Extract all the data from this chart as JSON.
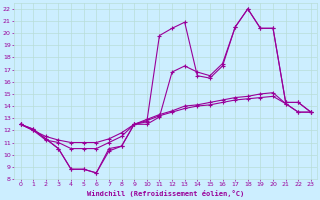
{
  "xlabel": "Windchill (Refroidissement éolien,°C)",
  "bg_color": "#cceeff",
  "grid_color": "#b8ddd8",
  "line_color": "#990099",
  "xlim": [
    -0.5,
    23.5
  ],
  "ylim": [
    8,
    22.5
  ],
  "yticks": [
    8,
    9,
    10,
    11,
    12,
    13,
    14,
    15,
    16,
    17,
    18,
    19,
    20,
    21,
    22
  ],
  "xticks": [
    0,
    1,
    2,
    3,
    4,
    5,
    6,
    7,
    8,
    9,
    10,
    11,
    12,
    13,
    14,
    15,
    16,
    17,
    18,
    19,
    20,
    21,
    22,
    23
  ],
  "line1_x": [
    0,
    1,
    2,
    3,
    4,
    5,
    6,
    7,
    8,
    9,
    10,
    11,
    12,
    13,
    14,
    15,
    16,
    17,
    18,
    19,
    20,
    21,
    22,
    23
  ],
  "line1_y": [
    12.5,
    12.0,
    11.2,
    11.0,
    10.5,
    10.5,
    10.5,
    11.0,
    11.5,
    12.5,
    12.8,
    13.2,
    13.5,
    13.8,
    14.0,
    14.1,
    14.3,
    14.5,
    14.6,
    14.7,
    14.8,
    14.2,
    13.5,
    13.5
  ],
  "line2_x": [
    0,
    1,
    2,
    3,
    4,
    5,
    6,
    7,
    8,
    9,
    10,
    11,
    12,
    13,
    14,
    15,
    16,
    17,
    18,
    19,
    20,
    21,
    22,
    23
  ],
  "line2_y": [
    12.5,
    12.0,
    11.5,
    11.2,
    11.0,
    11.0,
    11.0,
    11.3,
    11.8,
    12.5,
    12.9,
    13.3,
    13.6,
    14.0,
    14.1,
    14.3,
    14.5,
    14.7,
    14.8,
    15.0,
    15.1,
    14.2,
    13.5,
    13.5
  ],
  "line3_x": [
    0,
    1,
    2,
    3,
    4,
    5,
    6,
    7,
    8,
    9,
    10,
    11,
    12,
    13,
    14,
    15,
    16,
    17,
    18,
    19,
    20,
    21,
    22,
    23
  ],
  "line3_y": [
    12.5,
    12.1,
    11.3,
    10.5,
    8.8,
    8.8,
    8.5,
    10.5,
    10.7,
    12.5,
    12.5,
    13.1,
    16.8,
    17.3,
    16.8,
    16.5,
    17.5,
    20.5,
    22.0,
    20.4,
    20.4,
    14.3,
    14.3,
    13.5
  ],
  "line4_x": [
    0,
    1,
    2,
    3,
    4,
    5,
    6,
    7,
    8,
    9,
    10,
    11,
    12,
    13,
    14,
    15,
    16,
    17,
    18,
    19,
    20,
    21,
    22,
    23
  ],
  "line4_y": [
    12.5,
    12.1,
    11.3,
    10.5,
    8.8,
    8.8,
    8.5,
    10.3,
    10.7,
    12.5,
    12.7,
    19.8,
    20.4,
    20.9,
    16.5,
    16.3,
    17.3,
    20.5,
    22.0,
    20.4,
    20.4,
    14.3,
    14.3,
    13.5
  ]
}
